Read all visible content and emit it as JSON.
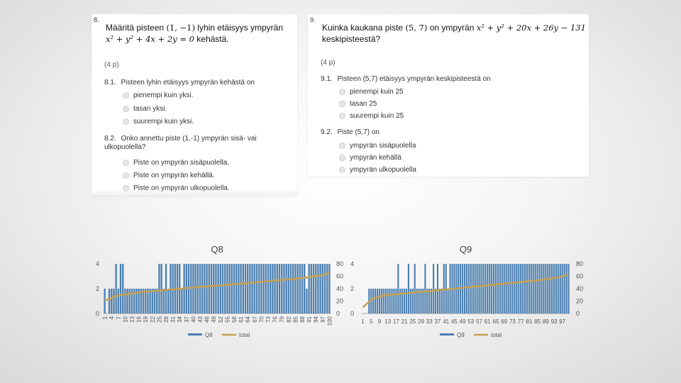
{
  "q8": {
    "number": "8.",
    "title_pre": "Määritä pisteen",
    "title_point": "(1, −1)",
    "title_mid": "lyhin etäisyys ympyrän",
    "title_eq": "x² + y² + 4x + 2y = 0",
    "title_post": "kehästä.",
    "points": "(4 p)",
    "s1_label": "8.1.",
    "s1_text": "Pisteen lyhin etäisyys ympyrän kehästä on",
    "s1_options": [
      "pienempi kuin yksi.",
      "tasan yksi.",
      "suurempi kuin yksi."
    ],
    "s2_label": "8.2.",
    "s2_text": "Onko annettu piste (1,-1) ympyrän sisä- vai ulkopuolella?",
    "s2_options": [
      "Piste on ympyrän sisäpuolella.",
      "Piste on ympyrän kehällä.",
      "Piste on ympyrän ulkopuolella."
    ]
  },
  "q9": {
    "number": "9.",
    "title_pre": "Kuinka kaukana piste",
    "title_point": "(5, 7)",
    "title_mid": "on ympyrän",
    "title_eq": "x² + y² + 20x + 26y − 131",
    "title_post": "keskipisteestä?",
    "points": "(4 p)",
    "s1_label": "9.1.",
    "s1_text": "Pisteen (5,7) etäisyys ympyrän keskipisteestä on",
    "s1_options": [
      "pienempi kuin 25",
      "tasan 25",
      "suurempi kuin 25"
    ],
    "s2_label": "9.2.",
    "s2_text": "Piste (5,7) on",
    "s2_options": [
      "ympyrän sisäpuolella",
      "ympyrän kehällä",
      "ympyrän ulkopuolella"
    ]
  },
  "colors": {
    "bar": "#4a7fb0",
    "line": "#c8a050",
    "axis": "#aaaaaa",
    "text": "#555555"
  },
  "chart_data": [
    {
      "type": "bar",
      "title": "Q8",
      "x": [
        1,
        2,
        3,
        4,
        5,
        6,
        7,
        8,
        9,
        10,
        11,
        12,
        13,
        14,
        15,
        16,
        17,
        18,
        19,
        20,
        21,
        22,
        23,
        24,
        25,
        26,
        27,
        28,
        29,
        30,
        31,
        32,
        33,
        34,
        35,
        36,
        37,
        38,
        39,
        40,
        41,
        42,
        43,
        44,
        45,
        46,
        47,
        48,
        49,
        50,
        51,
        52,
        53,
        54,
        55,
        56,
        57,
        58,
        59,
        60,
        61,
        62,
        63,
        64,
        65,
        66,
        67,
        68,
        69,
        70,
        71,
        72,
        73,
        74,
        75,
        76,
        77,
        78,
        79,
        80,
        81,
        82,
        83,
        84,
        85,
        86,
        87,
        88,
        89,
        90,
        91,
        92,
        93,
        94,
        95,
        96,
        97,
        98,
        99,
        100
      ],
      "xticks": [
        1,
        4,
        7,
        10,
        13,
        16,
        19,
        22,
        25,
        28,
        31,
        34,
        37,
        40,
        43,
        46,
        49,
        52,
        55,
        58,
        61,
        64,
        67,
        70,
        73,
        76,
        79,
        82,
        85,
        88,
        91,
        94,
        97,
        100
      ],
      "series": [
        {
          "name": "Q8",
          "axis": "left",
          "kind": "bar",
          "values": [
            2,
            0,
            2,
            2,
            2,
            4,
            2,
            4,
            4,
            2,
            2,
            2,
            2,
            2,
            2,
            2,
            2,
            2,
            2,
            2,
            2,
            2,
            2,
            2,
            4,
            4,
            2,
            4,
            2,
            4,
            4,
            4,
            4,
            4,
            2,
            4,
            4,
            4,
            4,
            4,
            4,
            4,
            4,
            4,
            4,
            4,
            4,
            4,
            4,
            4,
            4,
            4,
            4,
            4,
            4,
            4,
            4,
            4,
            4,
            4,
            4,
            4,
            4,
            4,
            4,
            4,
            4,
            4,
            4,
            4,
            4,
            4,
            4,
            4,
            4,
            4,
            4,
            4,
            4,
            4,
            4,
            4,
            4,
            4,
            4,
            4,
            4,
            4,
            4,
            2,
            4,
            4,
            4,
            4,
            4,
            4,
            4,
            4,
            4,
            4
          ]
        },
        {
          "name": "total",
          "axis": "right",
          "kind": "line",
          "values": [
            22,
            22,
            23,
            25,
            27,
            28,
            29,
            30,
            30,
            31,
            31,
            32,
            32,
            33,
            33,
            34,
            34,
            35,
            35,
            35,
            36,
            36,
            36,
            37,
            37,
            37,
            38,
            38,
            38,
            39,
            39,
            39,
            40,
            40,
            40,
            41,
            41,
            41,
            42,
            42,
            42,
            43,
            43,
            43,
            43,
            44,
            44,
            44,
            44,
            45,
            45,
            45,
            46,
            46,
            46,
            47,
            47,
            47,
            48,
            48,
            48,
            48,
            49,
            49,
            49,
            50,
            50,
            50,
            51,
            51,
            51,
            52,
            52,
            52,
            53,
            53,
            53,
            54,
            54,
            54,
            55,
            55,
            55,
            56,
            56,
            57,
            57,
            57,
            58,
            58,
            59,
            59,
            60,
            60,
            61,
            61,
            62,
            63,
            64,
            66
          ]
        }
      ],
      "ylim_left": [
        0,
        4
      ],
      "yticks_left": [
        0,
        2,
        4
      ],
      "ylim_right": [
        0,
        80
      ],
      "yticks_right": [
        0,
        20,
        40,
        60,
        80
      ],
      "legend": [
        "Q8",
        "total"
      ]
    },
    {
      "type": "bar",
      "title": "Q9",
      "x": [
        1,
        2,
        3,
        4,
        5,
        6,
        7,
        8,
        9,
        10,
        11,
        12,
        13,
        14,
        15,
        16,
        17,
        18,
        19,
        20,
        21,
        22,
        23,
        24,
        25,
        26,
        27,
        28,
        29,
        30,
        31,
        32,
        33,
        34,
        35,
        36,
        37,
        38,
        39,
        40,
        41,
        42,
        43,
        44,
        45,
        46,
        47,
        48,
        49,
        50,
        51,
        52,
        53,
        54,
        55,
        56,
        57,
        58,
        59,
        60,
        61,
        62,
        63,
        64,
        65,
        66,
        67,
        68,
        69,
        70,
        71,
        72,
        73,
        74,
        75,
        76,
        77,
        78,
        79,
        80,
        81,
        82,
        83,
        84,
        85,
        86,
        87,
        88,
        89,
        90,
        91,
        92,
        93,
        94,
        95,
        96,
        97,
        98,
        99,
        100
      ],
      "xticks": [
        1,
        5,
        9,
        13,
        17,
        21,
        25,
        29,
        33,
        37,
        41,
        45,
        49,
        53,
        57,
        61,
        65,
        69,
        73,
        77,
        81,
        85,
        89,
        93,
        97
      ],
      "series": [
        {
          "name": "Q9",
          "axis": "left",
          "kind": "bar",
          "values": [
            0,
            0,
            0,
            2,
            2,
            2,
            2,
            2,
            2,
            2,
            2,
            2,
            2,
            2,
            2,
            2,
            2,
            4,
            2,
            2,
            2,
            2,
            4,
            2,
            2,
            4,
            2,
            2,
            2,
            2,
            4,
            2,
            2,
            2,
            4,
            2,
            4,
            2,
            2,
            4,
            4,
            2,
            4,
            4,
            4,
            4,
            4,
            4,
            4,
            4,
            4,
            4,
            4,
            4,
            4,
            4,
            4,
            4,
            4,
            4,
            4,
            4,
            4,
            4,
            4,
            4,
            4,
            4,
            4,
            4,
            4,
            4,
            4,
            4,
            4,
            4,
            4,
            4,
            4,
            4,
            4,
            4,
            4,
            4,
            4,
            4,
            4,
            4,
            4,
            4,
            4,
            4,
            4,
            4,
            4,
            4,
            4,
            4,
            4,
            4
          ]
        },
        {
          "name": "total",
          "axis": "right",
          "kind": "line",
          "values": [
            10,
            13,
            16,
            19,
            22,
            24,
            25,
            26,
            27,
            28,
            29,
            29,
            30,
            30,
            30,
            31,
            31,
            31,
            32,
            32,
            32,
            33,
            33,
            33,
            34,
            34,
            34,
            35,
            35,
            35,
            35,
            36,
            36,
            36,
            37,
            37,
            37,
            38,
            38,
            38,
            39,
            39,
            39,
            40,
            40,
            40,
            41,
            41,
            41,
            42,
            42,
            42,
            43,
            43,
            43,
            44,
            44,
            44,
            45,
            45,
            45,
            46,
            46,
            46,
            47,
            47,
            47,
            48,
            48,
            48,
            49,
            49,
            49,
            50,
            50,
            50,
            51,
            51,
            51,
            52,
            52,
            52,
            53,
            53,
            53,
            54,
            54,
            55,
            55,
            56,
            56,
            57,
            57,
            58,
            58,
            59,
            60,
            61,
            62,
            63
          ]
        }
      ],
      "ylim_left": [
        0,
        4
      ],
      "yticks_left": [
        0,
        2,
        4
      ],
      "ylim_right": [
        0,
        80
      ],
      "yticks_right": [
        0,
        20,
        40,
        60,
        80
      ],
      "legend": [
        "Q9",
        "total"
      ]
    }
  ]
}
